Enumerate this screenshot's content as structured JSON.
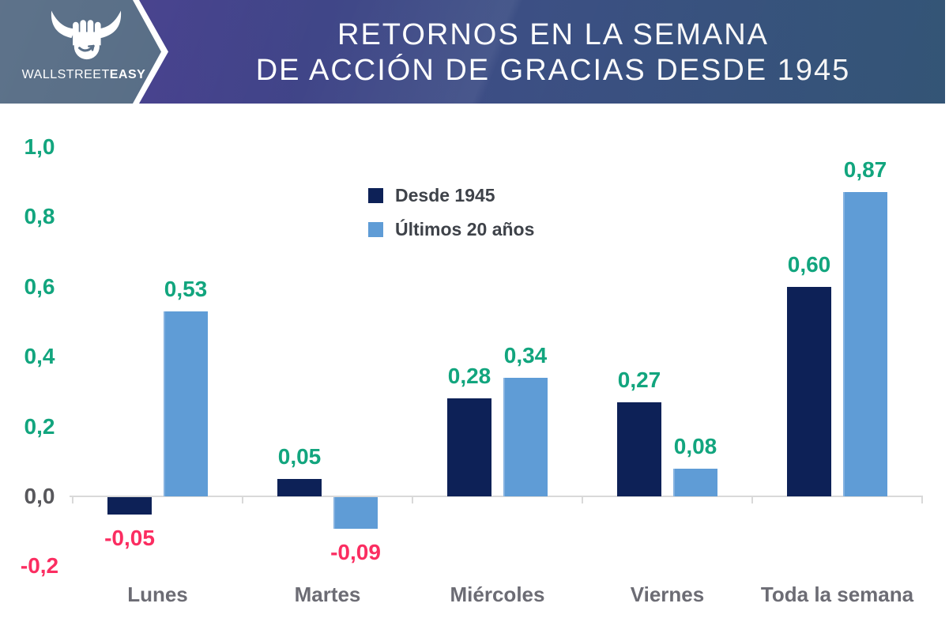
{
  "header": {
    "brand": {
      "name_regular": "WALLSTREET",
      "name_bold": "EASY"
    },
    "title_line1": "RETORNOS EN LA SEMANA",
    "title_line2": "DE ACCIÓN DE GRACIAS DESDE 1945"
  },
  "palette": {
    "navy": "#0d2157",
    "light_blue": "#5f9cd6",
    "positive_green": "#12a57e",
    "negative_pink": "#fb2d61",
    "zero_gray": "#58585c",
    "axis_gray": "#d9d9d9",
    "category_gray": "#6c6c74",
    "legend_text": "#3e4249",
    "header_purple": "#4a3d8e",
    "header_steel_blue": "#36597c",
    "logo_slate": "#556b84"
  },
  "chart_data": {
    "type": "bar",
    "title": "Retornos en la semana de Acción de Gracias desde 1945",
    "categories": [
      "Lunes",
      "Martes",
      "Miércoles",
      "Viernes",
      "Toda la semana"
    ],
    "series": [
      {
        "name": "Desde 1945",
        "color": "#0d2157",
        "values": [
          -0.05,
          0.05,
          0.28,
          0.27,
          0.6
        ],
        "labels": [
          "-0,05",
          "0,05",
          "0,28",
          "0,27",
          "0,60"
        ]
      },
      {
        "name": "Últimos 20 años",
        "color": "#5f9cd6",
        "values": [
          0.53,
          -0.09,
          0.34,
          0.08,
          0.87
        ],
        "labels": [
          "0,53",
          "-0,09",
          "0,34",
          "0,08",
          "0,87"
        ]
      }
    ],
    "y_axis": {
      "min": -0.2,
      "max": 1.0,
      "ticks": [
        1.0,
        0.8,
        0.6,
        0.4,
        0.2,
        0.0,
        -0.2
      ],
      "tick_labels": [
        "1,0",
        "0,8",
        "0,6",
        "0,4",
        "0,2",
        "0,0",
        "-0,2"
      ]
    },
    "grid": false,
    "legend_position": "top-center",
    "value_label_format": "comma-decimal"
  },
  "legend": {
    "items": [
      {
        "label": "Desde 1945",
        "color": "#0d2157"
      },
      {
        "label": "Últimos 20 años",
        "color": "#5f9cd6"
      }
    ]
  }
}
